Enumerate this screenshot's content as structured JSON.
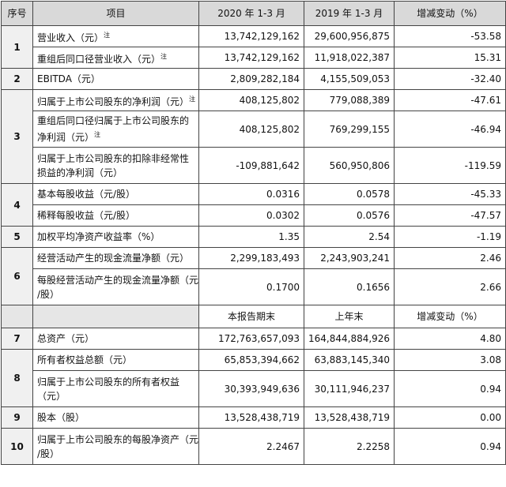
{
  "header": [
    "序号",
    "项目",
    "2020 年 1-3 月",
    "2019 年 1-3 月",
    "增减变动（%）"
  ],
  "groups": [
    {
      "no": "1",
      "rows": [
        {
          "item": [
            "营业收入（元）"
          ],
          "note": "注",
          "values": [
            "13,742,129,162",
            "29,600,956,875",
            "-53.58"
          ]
        },
        {
          "item": [
            "重组后同口径营业收入（元）"
          ],
          "note": "注",
          "values": [
            "13,742,129,162",
            "11,918,022,387",
            "15.31"
          ]
        }
      ]
    },
    {
      "no": "2",
      "rows": [
        {
          "item": [
            "EBITDA（元）"
          ],
          "values": [
            "2,809,282,184",
            "4,155,509,053",
            "-32.40"
          ]
        }
      ]
    },
    {
      "no": "3",
      "rows": [
        {
          "item": [
            "归属于上市公司股东的净利润（元）"
          ],
          "note": "注",
          "values": [
            "408,125,802",
            "779,088,389",
            "-47.61"
          ]
        },
        {
          "item": [
            "重组后同口径归属于上市公司股东的",
            "净利润（元）"
          ],
          "note": "注",
          "values": [
            "408,125,802",
            "769,299,155",
            "-46.94"
          ]
        },
        {
          "item": [
            "归属于上市公司股东的扣除非经常性",
            "损益的净利润（元）"
          ],
          "values": [
            "-109,881,642",
            "560,950,806",
            "-119.59"
          ]
        }
      ]
    },
    {
      "no": "4",
      "rows": [
        {
          "item": [
            "基本每股收益（元/股）"
          ],
          "values": [
            "0.0316",
            "0.0578",
            "-45.33"
          ]
        },
        {
          "item": [
            "稀释每股收益（元/股）"
          ],
          "values": [
            "0.0302",
            "0.0576",
            "-47.57"
          ]
        }
      ]
    },
    {
      "no": "5",
      "rows": [
        {
          "item": [
            "加权平均净资产收益率（%）"
          ],
          "values": [
            "1.35",
            "2.54",
            "-1.19"
          ]
        }
      ]
    },
    {
      "no": "6",
      "rows": [
        {
          "item": [
            "经营活动产生的现金流量净额（元）"
          ],
          "values": [
            "2,299,183,493",
            "2,243,903,241",
            "2.46"
          ]
        },
        {
          "item": [
            "每股经营活动产生的现金流量净额（元",
            "/股）"
          ],
          "values": [
            "0.1700",
            "0.1656",
            "2.66"
          ]
        }
      ]
    }
  ],
  "subheader": [
    "本报告期末",
    "上年末",
    "增减变动（%）"
  ],
  "groups2": [
    {
      "no": "7",
      "rows": [
        {
          "item": [
            "总资产（元）"
          ],
          "values": [
            "172,763,657,093",
            "164,844,884,926",
            "4.80"
          ]
        }
      ]
    },
    {
      "no": "8",
      "rows": [
        {
          "item": [
            "所有者权益总额（元）"
          ],
          "values": [
            "65,853,394,662",
            "63,883,145,340",
            "3.08"
          ]
        },
        {
          "item": [
            "归属于上市公司股东的所有者权益",
            "（元）"
          ],
          "values": [
            "30,393,949,636",
            "30,111,946,237",
            "0.94"
          ]
        }
      ]
    },
    {
      "no": "9",
      "rows": [
        {
          "item": [
            "股本（股）"
          ],
          "values": [
            "13,528,438,719",
            "13,528,438,719",
            "0.00"
          ]
        }
      ]
    },
    {
      "no": "10",
      "rows": [
        {
          "item": [
            "归属于上市公司股东的每股净资产（元",
            "/股）"
          ],
          "values": [
            "2.2467",
            "2.2258",
            "0.94"
          ]
        }
      ]
    }
  ]
}
